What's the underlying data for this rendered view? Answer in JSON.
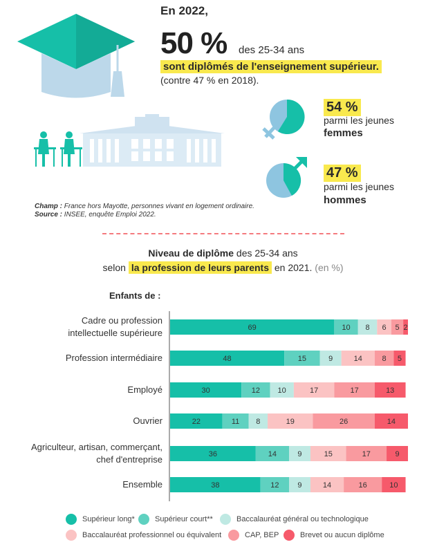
{
  "header": {
    "year_label": "En 2022,",
    "big_value": "50 %",
    "big_suffix": "des 25-34 ans",
    "highlight": "sont diplômés de l'enseignement supérieur.",
    "comparison": "(contre 47 % en 2018)."
  },
  "women": {
    "value": "54 %",
    "line1": "parmi les jeunes",
    "line2": "femmes"
  },
  "men": {
    "value": "47 %",
    "line1": "parmi les jeunes",
    "line2": "hommes"
  },
  "notes": {
    "champ_label": "Champ :",
    "champ_text": "France hors Mayotte, personnes vivant en logement ordinaire.",
    "source_label": "Source :",
    "source_text": "INSEE, enquête Emploi 2022."
  },
  "chart_title": {
    "bold1": "Niveau de diplôme",
    "rest1": "des 25-34 ans",
    "pre2": "selon",
    "highlight2": "la profession de leurs parents",
    "post2": "en 2021.",
    "unit": "(en %)"
  },
  "enfants_label": "Enfants de :",
  "colors": {
    "teal": "#16bfa8",
    "teal_mid": "#5fd1c0",
    "teal_light": "#bfe9e3",
    "pink_light": "#fbc3c3",
    "pink_mid": "#f99a9f",
    "red": "#f65a6b",
    "yellow": "#f9e94e",
    "blue_light": "#8ec5e0",
    "dash": "#f47a7e"
  },
  "chart_data": {
    "type": "bar",
    "orientation": "horizontal-stacked",
    "categories": [
      [
        "Cadre ou profession",
        "intellectuelle supérieure"
      ],
      [
        "Profession intermédiaire"
      ],
      [
        "Employé"
      ],
      [
        "Ouvrier"
      ],
      [
        "Agriculteur, artisan, commerçant,",
        "chef d'entreprise"
      ],
      [
        "Ensemble"
      ]
    ],
    "series": [
      {
        "name": "Supérieur long*",
        "color": "#16bfa8",
        "values": [
          69,
          48,
          30,
          22,
          36,
          38
        ]
      },
      {
        "name": "Supérieur court**",
        "color": "#5fd1c0",
        "values": [
          10,
          15,
          12,
          11,
          14,
          12
        ]
      },
      {
        "name": "Baccalauréat général ou technologique",
        "color": "#bfe9e3",
        "values": [
          8,
          9,
          10,
          8,
          9,
          9
        ]
      },
      {
        "name": "Baccalauréat professionnel ou équivalent",
        "color": "#fbc3c3",
        "values": [
          6,
          14,
          17,
          19,
          15,
          14
        ]
      },
      {
        "name": "CAP, BEP",
        "color": "#f99a9f",
        "values": [
          5,
          8,
          17,
          26,
          17,
          16
        ]
      },
      {
        "name": "Brevet ou aucun diplôme",
        "color": "#f65a6b",
        "values": [
          2,
          5,
          13,
          14,
          9,
          10
        ]
      }
    ],
    "xlim": [
      0,
      100
    ],
    "unit": "%"
  }
}
